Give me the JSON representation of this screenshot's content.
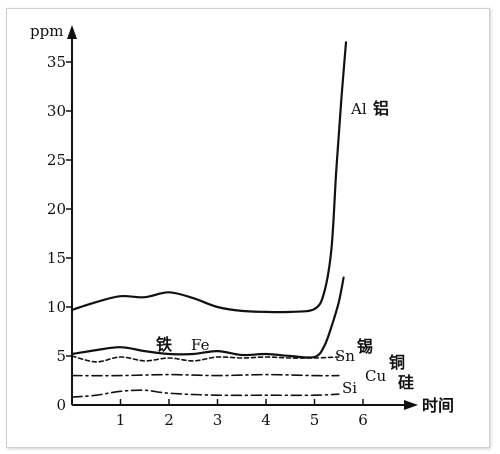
{
  "chart_data": {
    "type": "line",
    "ylabel": "ppm",
    "xlabel": "时间",
    "xlim": [
      0,
      6.5
    ],
    "ylim": [
      0,
      38
    ],
    "x_ticks": [
      "1",
      "2",
      "3",
      "4",
      "5",
      "6"
    ],
    "x_tick_values": [
      1,
      2,
      3,
      4,
      5,
      6
    ],
    "y_ticks": [
      "0",
      "5",
      "10",
      "15",
      "20",
      "25",
      "30",
      "35"
    ],
    "y_tick_values": [
      0,
      5,
      10,
      15,
      20,
      25,
      30,
      35
    ],
    "series": [
      {
        "name": "Al",
        "label_cn": "铝",
        "style": "solid",
        "x": [
          0,
          0.5,
          1,
          1.5,
          2,
          2.5,
          3,
          3.5,
          4,
          4.5,
          5,
          5.2,
          5.35,
          5.45,
          5.55,
          5.65
        ],
        "y": [
          9.7,
          10.5,
          11.1,
          11.0,
          11.5,
          10.9,
          10.0,
          9.6,
          9.5,
          9.5,
          9.8,
          11.5,
          16,
          24,
          31,
          37
        ]
      },
      {
        "name": "Fe",
        "label_cn": "铁",
        "style": "solid",
        "x": [
          0,
          0.5,
          1,
          1.5,
          2,
          2.5,
          3,
          3.5,
          4,
          4.5,
          5,
          5.2,
          5.35,
          5.5,
          5.6
        ],
        "y": [
          5.2,
          5.6,
          5.9,
          5.5,
          5.2,
          5.2,
          5.5,
          5.1,
          5.2,
          5.0,
          4.9,
          6.0,
          8.0,
          10.5,
          13.0
        ]
      },
      {
        "name": "Sn",
        "label_cn": "锡",
        "style": "dashed",
        "x": [
          0,
          0.5,
          1,
          1.5,
          2,
          2.5,
          3,
          3.5,
          4,
          4.5,
          5,
          5.5
        ],
        "y": [
          5.0,
          4.4,
          4.9,
          4.5,
          4.8,
          4.5,
          4.9,
          4.8,
          4.9,
          4.8,
          4.8,
          4.9
        ]
      },
      {
        "name": "Cu",
        "label_cn": "铜",
        "style": "dashdot",
        "x": [
          0,
          1,
          2,
          3,
          4,
          5,
          5.5
        ],
        "y": [
          3.0,
          3.0,
          3.1,
          3.0,
          3.1,
          3.0,
          3.0
        ]
      },
      {
        "name": "Si",
        "label_cn": "硅",
        "style": "dashdot",
        "x": [
          0,
          0.5,
          1,
          1.5,
          2,
          3,
          4,
          5,
          5.5
        ],
        "y": [
          0.8,
          1.0,
          1.4,
          1.5,
          1.2,
          1.0,
          1.0,
          1.0,
          1.1
        ]
      }
    ]
  }
}
